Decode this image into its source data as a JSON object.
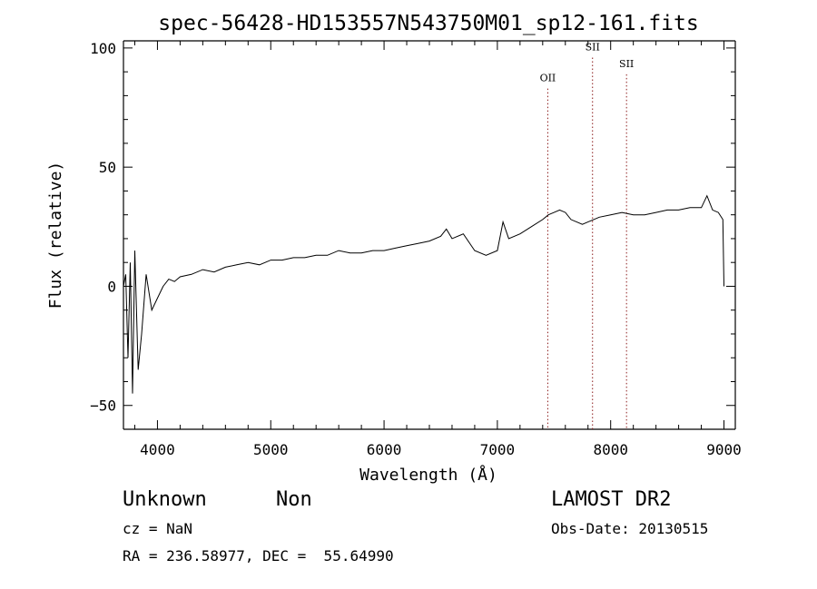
{
  "chart_data": {
    "type": "line",
    "title": "spec-56428-HD153557N543750M01_sp12-161.fits",
    "xlabel": "Wavelength (Å)",
    "ylabel": "Flux (relative)",
    "xlim": [
      3700,
      9100
    ],
    "ylim": [
      -60,
      103
    ],
    "xticks": [
      4000,
      5000,
      6000,
      7000,
      8000,
      9000
    ],
    "yticks": [
      -50,
      0,
      50,
      100
    ],
    "ytick_labels": [
      "−50",
      "0",
      "50",
      "100"
    ],
    "grid": false,
    "line_color": "#000000",
    "marker_color": "#8b1a1a",
    "series": [
      {
        "x": [
          3700,
          3720,
          3740,
          3760,
          3780,
          3800,
          3830,
          3860,
          3900,
          3950,
          4000,
          4050,
          4100,
          4150,
          4200,
          4300,
          4400,
          4500,
          4600,
          4700,
          4800,
          4900,
          5000,
          5100,
          5200,
          5300,
          5400,
          5500,
          5600,
          5700,
          5800,
          5900,
          6000,
          6100,
          6200,
          6300,
          6400,
          6500,
          6550,
          6600,
          6700,
          6800,
          6900,
          7000,
          7050,
          7100,
          7200,
          7300,
          7400,
          7450,
          7500,
          7550,
          7600,
          7650,
          7700,
          7750,
          7800,
          7850,
          7900,
          8000,
          8100,
          8200,
          8300,
          8400,
          8500,
          8600,
          8700,
          8800,
          8850,
          8900,
          8950,
          8990,
          9000
        ],
        "y": [
          0,
          5,
          -30,
          10,
          -45,
          15,
          -35,
          -20,
          5,
          -10,
          -5,
          0,
          3,
          2,
          4,
          5,
          7,
          6,
          8,
          9,
          10,
          9,
          11,
          11,
          12,
          12,
          13,
          13,
          15,
          14,
          14,
          15,
          15,
          16,
          17,
          18,
          19,
          21,
          24,
          20,
          22,
          15,
          13,
          15,
          27,
          20,
          22,
          25,
          28,
          30,
          31,
          32,
          31,
          28,
          27,
          26,
          27,
          28,
          29,
          30,
          31,
          30,
          30,
          31,
          32,
          32,
          33,
          33,
          38,
          32,
          31,
          28,
          0
        ]
      }
    ],
    "annotations": [
      {
        "label": "OII",
        "x": 7445,
        "y": 86
      },
      {
        "label": "SII",
        "x": 7840,
        "y": 99
      },
      {
        "label": "SII",
        "x": 8140,
        "y": 92
      }
    ]
  },
  "info": {
    "object_class": "Unknown",
    "object_subclass": "Non",
    "survey": "LAMOST DR2",
    "redshift": "cz = NaN",
    "obs_date": "Obs-Date: 20130515",
    "coords": "RA = 236.58977, DEC =  55.64990"
  }
}
